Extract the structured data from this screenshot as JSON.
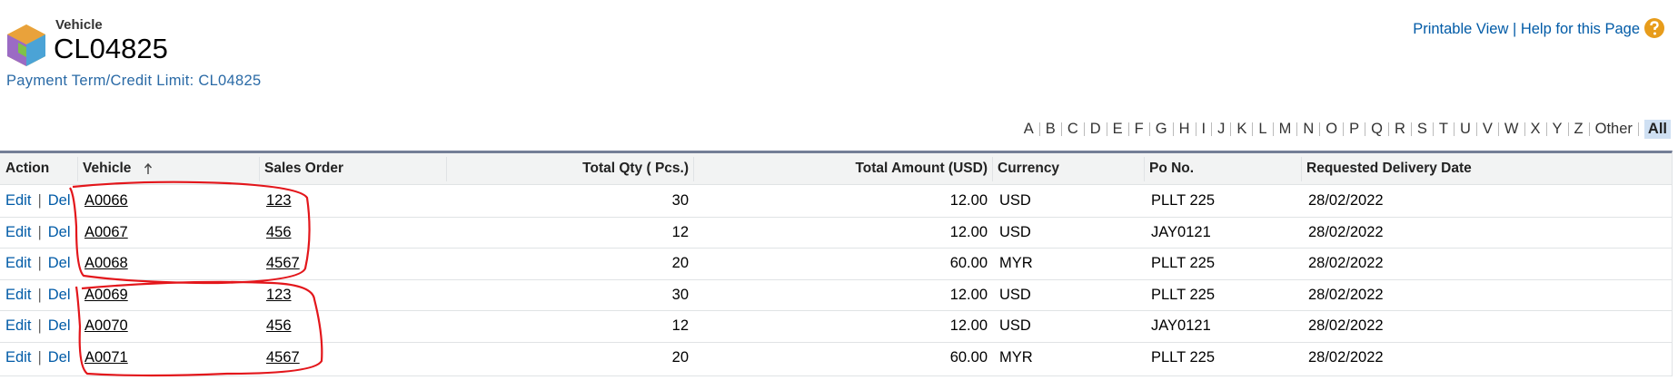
{
  "header": {
    "object_label": "Vehicle",
    "title": "CL04825",
    "breadcrumb": "Payment Term/Credit Limit: CL04825"
  },
  "top_links": {
    "printable": "Printable View",
    "separator": "|",
    "help": "Help for this Page"
  },
  "alphabet": [
    "A",
    "B",
    "C",
    "D",
    "E",
    "F",
    "G",
    "H",
    "I",
    "J",
    "K",
    "L",
    "M",
    "N",
    "O",
    "P",
    "Q",
    "R",
    "S",
    "T",
    "U",
    "V",
    "W",
    "X",
    "Y",
    "Z",
    "Other",
    "All"
  ],
  "table": {
    "columns": [
      "Action",
      "Vehicle",
      "Sales Order",
      "Total Qty ( Pcs.)",
      "Total Amount (USD)",
      "Currency",
      "Po No.",
      "Requested Delivery Date"
    ],
    "row_actions": {
      "edit": "Edit",
      "separator": "|",
      "delete": "Del"
    },
    "rows": [
      [
        "A0066",
        "123",
        "30",
        "12.00",
        "USD",
        "PLLT 225",
        "28/02/2022"
      ],
      [
        "A0067",
        "456",
        "12",
        "12.00",
        "USD",
        "JAY0121",
        "28/02/2022"
      ],
      [
        "A0068",
        "4567",
        "20",
        "60.00",
        "MYR",
        "PLLT 225",
        "28/02/2022"
      ],
      [
        "A0069",
        "123",
        "30",
        "12.00",
        "USD",
        "PLLT 225",
        "28/02/2022"
      ],
      [
        "A0070",
        "456",
        "12",
        "12.00",
        "USD",
        "JAY0121",
        "28/02/2022"
      ],
      [
        "A0071",
        "4567",
        "20",
        "60.00",
        "MYR",
        "PLLT 225",
        "28/02/2022"
      ]
    ]
  }
}
